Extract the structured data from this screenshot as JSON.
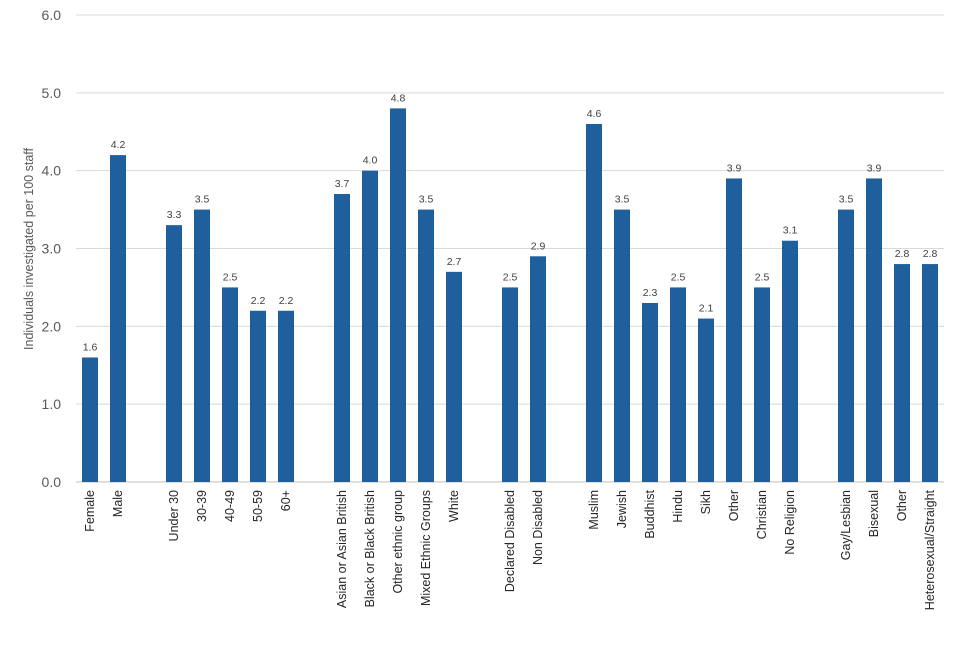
{
  "chart_data": {
    "type": "bar",
    "title": "",
    "xlabel": "",
    "ylabel": "Individuals investigated per 100 staff",
    "ylim": [
      0,
      6
    ],
    "yticks": [
      "0.0",
      "1.0",
      "2.0",
      "3.0",
      "4.0",
      "5.0",
      "6.0"
    ],
    "grid": true,
    "legend": "none",
    "bar_color": "#1f5f9c",
    "groups": [
      {
        "categories": [
          "Female",
          "Male"
        ],
        "values": [
          1.6,
          4.2
        ]
      },
      {
        "categories": [
          "Under 30",
          "30-39",
          "40-49",
          "50-59",
          "60+"
        ],
        "values": [
          3.3,
          3.5,
          2.5,
          2.2,
          2.2
        ]
      },
      {
        "categories": [
          "Asian or Asian British",
          "Black or Black British",
          "Other ethnic group",
          "Mixed Ethnic Groups",
          "White"
        ],
        "values": [
          3.7,
          4.0,
          4.8,
          3.5,
          2.7
        ]
      },
      {
        "categories": [
          "Declared Disabled",
          "Non Disabled"
        ],
        "values": [
          2.5,
          2.9
        ]
      },
      {
        "categories": [
          "Muslim",
          "Jewish",
          "Buddhist",
          "Hindu",
          "Sikh",
          "Other",
          "Christian",
          "No Religion"
        ],
        "values": [
          4.6,
          3.5,
          2.3,
          2.5,
          2.1,
          3.9,
          2.5,
          3.1
        ]
      },
      {
        "categories": [
          "Gay/Lesbian",
          "Bisexual",
          "Other",
          "Heterosexual/Straight"
        ],
        "values": [
          3.5,
          3.9,
          2.8,
          2.8
        ]
      }
    ]
  }
}
